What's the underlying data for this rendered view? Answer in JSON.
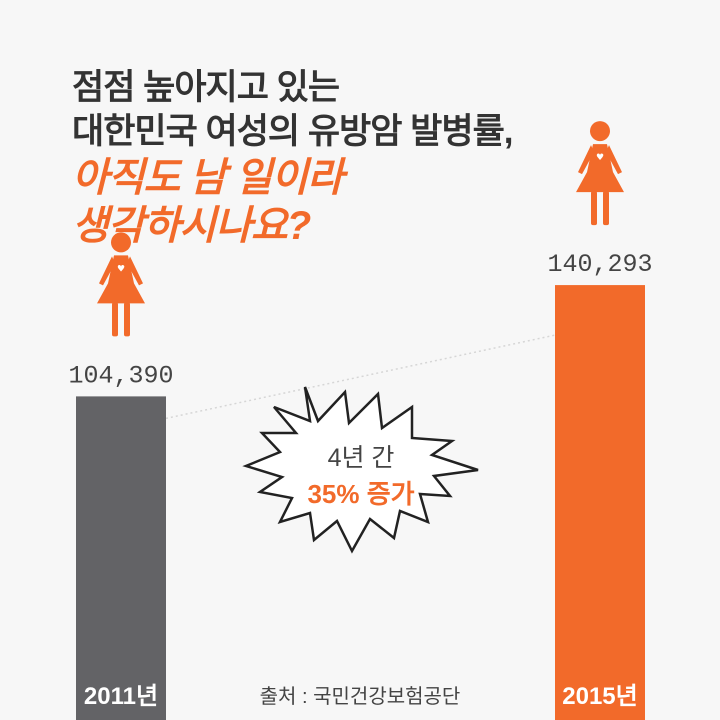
{
  "headline": {
    "line1": "점점 높아지고 있는",
    "line2": "대한민국 여성의 유방암 발병률,",
    "line3": "아직도 남 일이라",
    "line4": "생각하시나요?"
  },
  "callout": {
    "line1": "4년 간",
    "line2": "35% 증가"
  },
  "source": "출처 : 국민건강보험공단",
  "colors": {
    "bar_2011": "#636366",
    "bar_2015": "#f26a2a",
    "accent": "#f26a2a",
    "text_dark": "#333333",
    "background": "#f7f7f7"
  },
  "chart_data": {
    "type": "bar",
    "categories": [
      "2011년",
      "2015년"
    ],
    "values": [
      104390,
      140293
    ],
    "value_labels": [
      "104,390",
      "140,293"
    ],
    "ylim": [
      0,
      150000
    ]
  }
}
